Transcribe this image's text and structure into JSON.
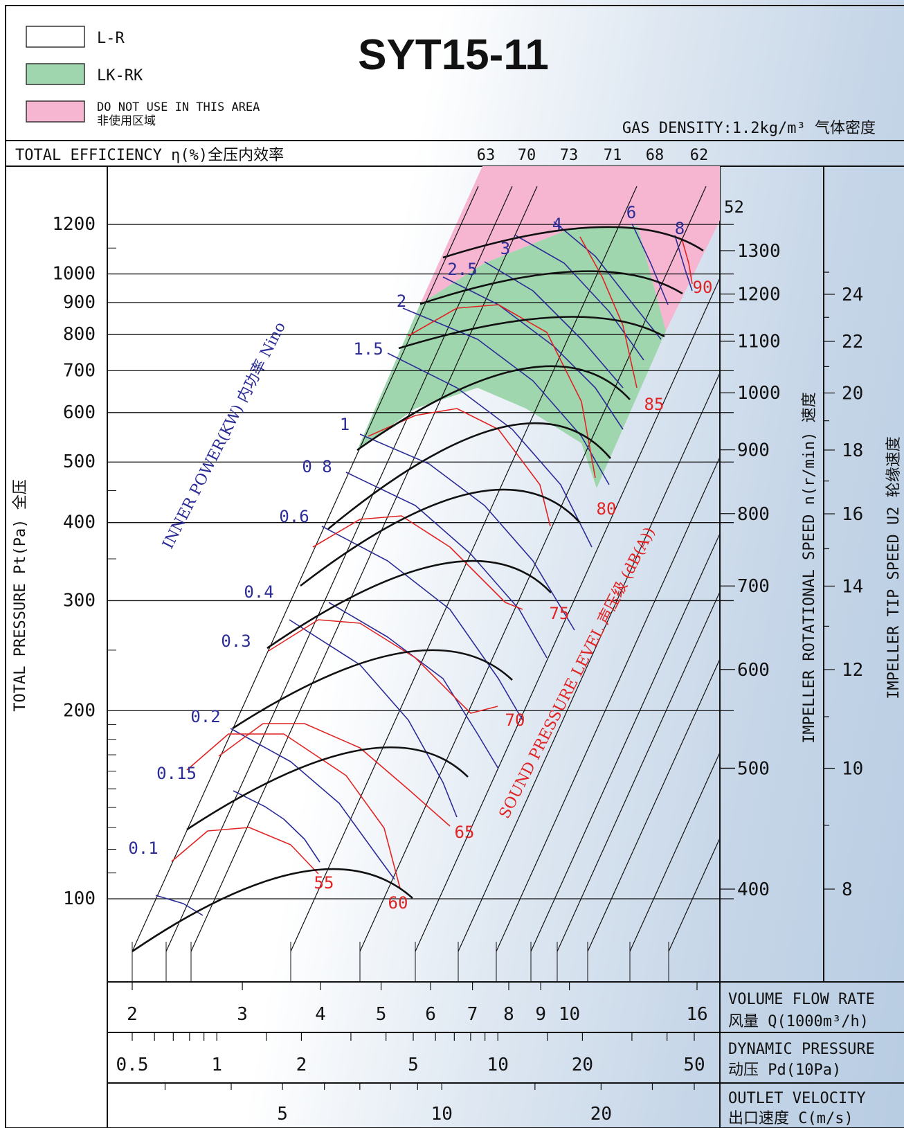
{
  "chart_data": {
    "type": "line",
    "title": "SYT15-11",
    "gas_density": "GAS DENSITY:1.2kg/m³ 气体密度",
    "legend": [
      {
        "label": "L-R",
        "color": "#ffffff"
      },
      {
        "label": "LK-RK",
        "color": "#9fd6ae"
      },
      {
        "label": "DO NOT USE IN THIS AREA",
        "sub": "非使用区域",
        "color": "#f6b6d2"
      }
    ],
    "efficiency_label": "TOTAL EFFICIENCY η(%)全压内效率",
    "efficiency_values": [
      63,
      70,
      73,
      71,
      68,
      62
    ],
    "y_axis": {
      "label": "TOTAL PRESSURE Pt(Pa) 全压",
      "scale": "log",
      "ylim": [
        80,
        1400
      ],
      "ticks": [
        100,
        200,
        300,
        400,
        500,
        600,
        700,
        800,
        900,
        1000,
        1200
      ]
    },
    "x_axes": [
      {
        "label": "VOLUME FLOW RATE",
        "sub": "风量 Q(1000m³/h)",
        "scale": "log",
        "ticks": [
          2,
          3,
          4,
          5,
          6,
          7,
          8,
          9,
          10,
          16
        ]
      },
      {
        "label": "DYNAMIC PRESSURE",
        "sub": "动压 Pd(10Pa)",
        "scale": "log",
        "ticks": [
          "0.5",
          "1",
          "2",
          "5",
          "10",
          "20",
          "50"
        ]
      },
      {
        "label": "OUTLET VELOCITY",
        "sub": "出口速度 C(m/s)",
        "ticks": [
          5,
          10,
          20
        ]
      }
    ],
    "speed_axis": {
      "label": "IMPELLER ROTATIONAL SPEED n(r/min) 速度",
      "ticks": [
        400,
        500,
        600,
        700,
        800,
        900,
        1000,
        1100,
        1200,
        1300
      ],
      "top_value": "52"
    },
    "tip_speed_axis": {
      "label": "IMPELLER TIP SPEED U2 轮缘速度",
      "ticks": [
        8,
        10,
        12,
        14,
        16,
        18,
        20,
        22,
        24
      ]
    },
    "series": [
      {
        "name": "INNER POWER(KW) 内功率 Nino",
        "color": "#2c2c96",
        "labels": [
          "0.1",
          "0.15",
          "0.2",
          "0.3",
          "0.4",
          "0.6",
          "0 8",
          "1",
          "1.5",
          "2",
          "2.5",
          "3",
          "4",
          "6",
          "8"
        ]
      },
      {
        "name": "SOUND PRESSURE LEVEL 声压级 (dB(A))",
        "color": "#e02424",
        "labels": [
          "55",
          "60",
          "65",
          "70",
          "75",
          "80",
          "85",
          "90"
        ]
      }
    ],
    "speed_curves": [
      {
        "apex": [
          3.6,
          114
        ],
        "ends": [
          2.0,
          80
        ],
        "end2": [
          5.0,
          98
        ]
      },
      {
        "apex": [
          4.45,
          180
        ],
        "ends": [
          2.35,
          152
        ],
        "end2": [
          6.0,
          158
        ]
      },
      {
        "apex": [
          5.1,
          250
        ],
        "ends": [
          2.7,
          220
        ],
        "end2": [
          7.2,
          224
        ]
      },
      {
        "apex": [
          6.1,
          345
        ],
        "ends": [
          3.3,
          310
        ],
        "end2": [
          8.7,
          303
        ]
      },
      {
        "apex": [
          7.0,
          452
        ],
        "ends": [
          3.9,
          410
        ],
        "end2": [
          10.2,
          404
        ]
      },
      {
        "apex": [
          7.5,
          575
        ],
        "ends": [
          4.2,
          535
        ],
        "end2": [
          11.4,
          521
        ]
      },
      {
        "apex": [
          8.6,
          705
        ],
        "ends": [
          4.6,
          630
        ],
        "end2": [
          12.9,
          640
        ]
      },
      {
        "apex": [
          9.6,
          850
        ],
        "ends": [
          5.1,
          740
        ],
        "end2": [
          14.3,
          780
        ]
      },
      {
        "apex": [
          10.5,
          1010
        ],
        "ends": [
          5.5,
          870
        ],
        "end2": [
          15.5,
          920
        ]
      },
      {
        "apex": [
          11.6,
          1190
        ],
        "ends": [
          6.0,
          1000
        ],
        "end2": [
          16.2,
          1130
        ]
      }
    ]
  }
}
